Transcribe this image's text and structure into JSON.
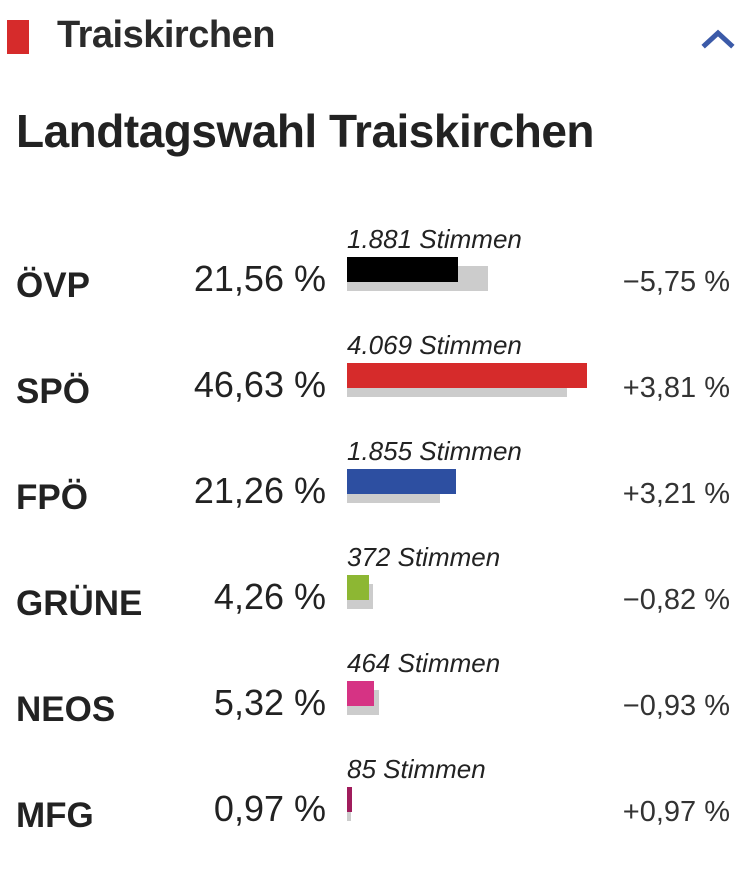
{
  "header": {
    "region": "Traiskirchen",
    "accent_color": "#d62b2b",
    "collapse_icon": "chevron-up-icon",
    "collapse_color": "#3b5aa8"
  },
  "title": "Landtagswahl Traiskirchen",
  "chart_data": {
    "type": "bar",
    "title": "Landtagswahl Traiskirchen",
    "categories": [
      "ÖVP",
      "SPÖ",
      "FPÖ",
      "GRÜNE",
      "NEOS",
      "MFG"
    ],
    "series": [
      {
        "values": [
          21.56,
          46.63,
          21.26,
          4.26,
          5.32,
          0.97
        ],
        "labels": [
          "21,56 %",
          "46,63 %",
          "21,26 %",
          "4,26 %",
          "5,32 %",
          "0,97 %"
        ]
      }
    ],
    "votes": [
      "1.881 Stimmen",
      "4.069 Stimmen",
      "1.855 Stimmen",
      "372 Stimmen",
      "464 Stimmen",
      "85 Stimmen"
    ],
    "changes": [
      -5.75,
      3.81,
      3.21,
      -0.82,
      -0.93,
      0.97
    ],
    "change_labels": [
      "−5,75 %",
      "+3,81 %",
      "+3,21 %",
      "−0,82 %",
      "−0,93 %",
      "+0,97 %"
    ],
    "colors": [
      "#000000",
      "#d62b2b",
      "#2d4fa1",
      "#8db733",
      "#d63384",
      "#a01c5c"
    ],
    "previous_color": "#cccccc"
  }
}
